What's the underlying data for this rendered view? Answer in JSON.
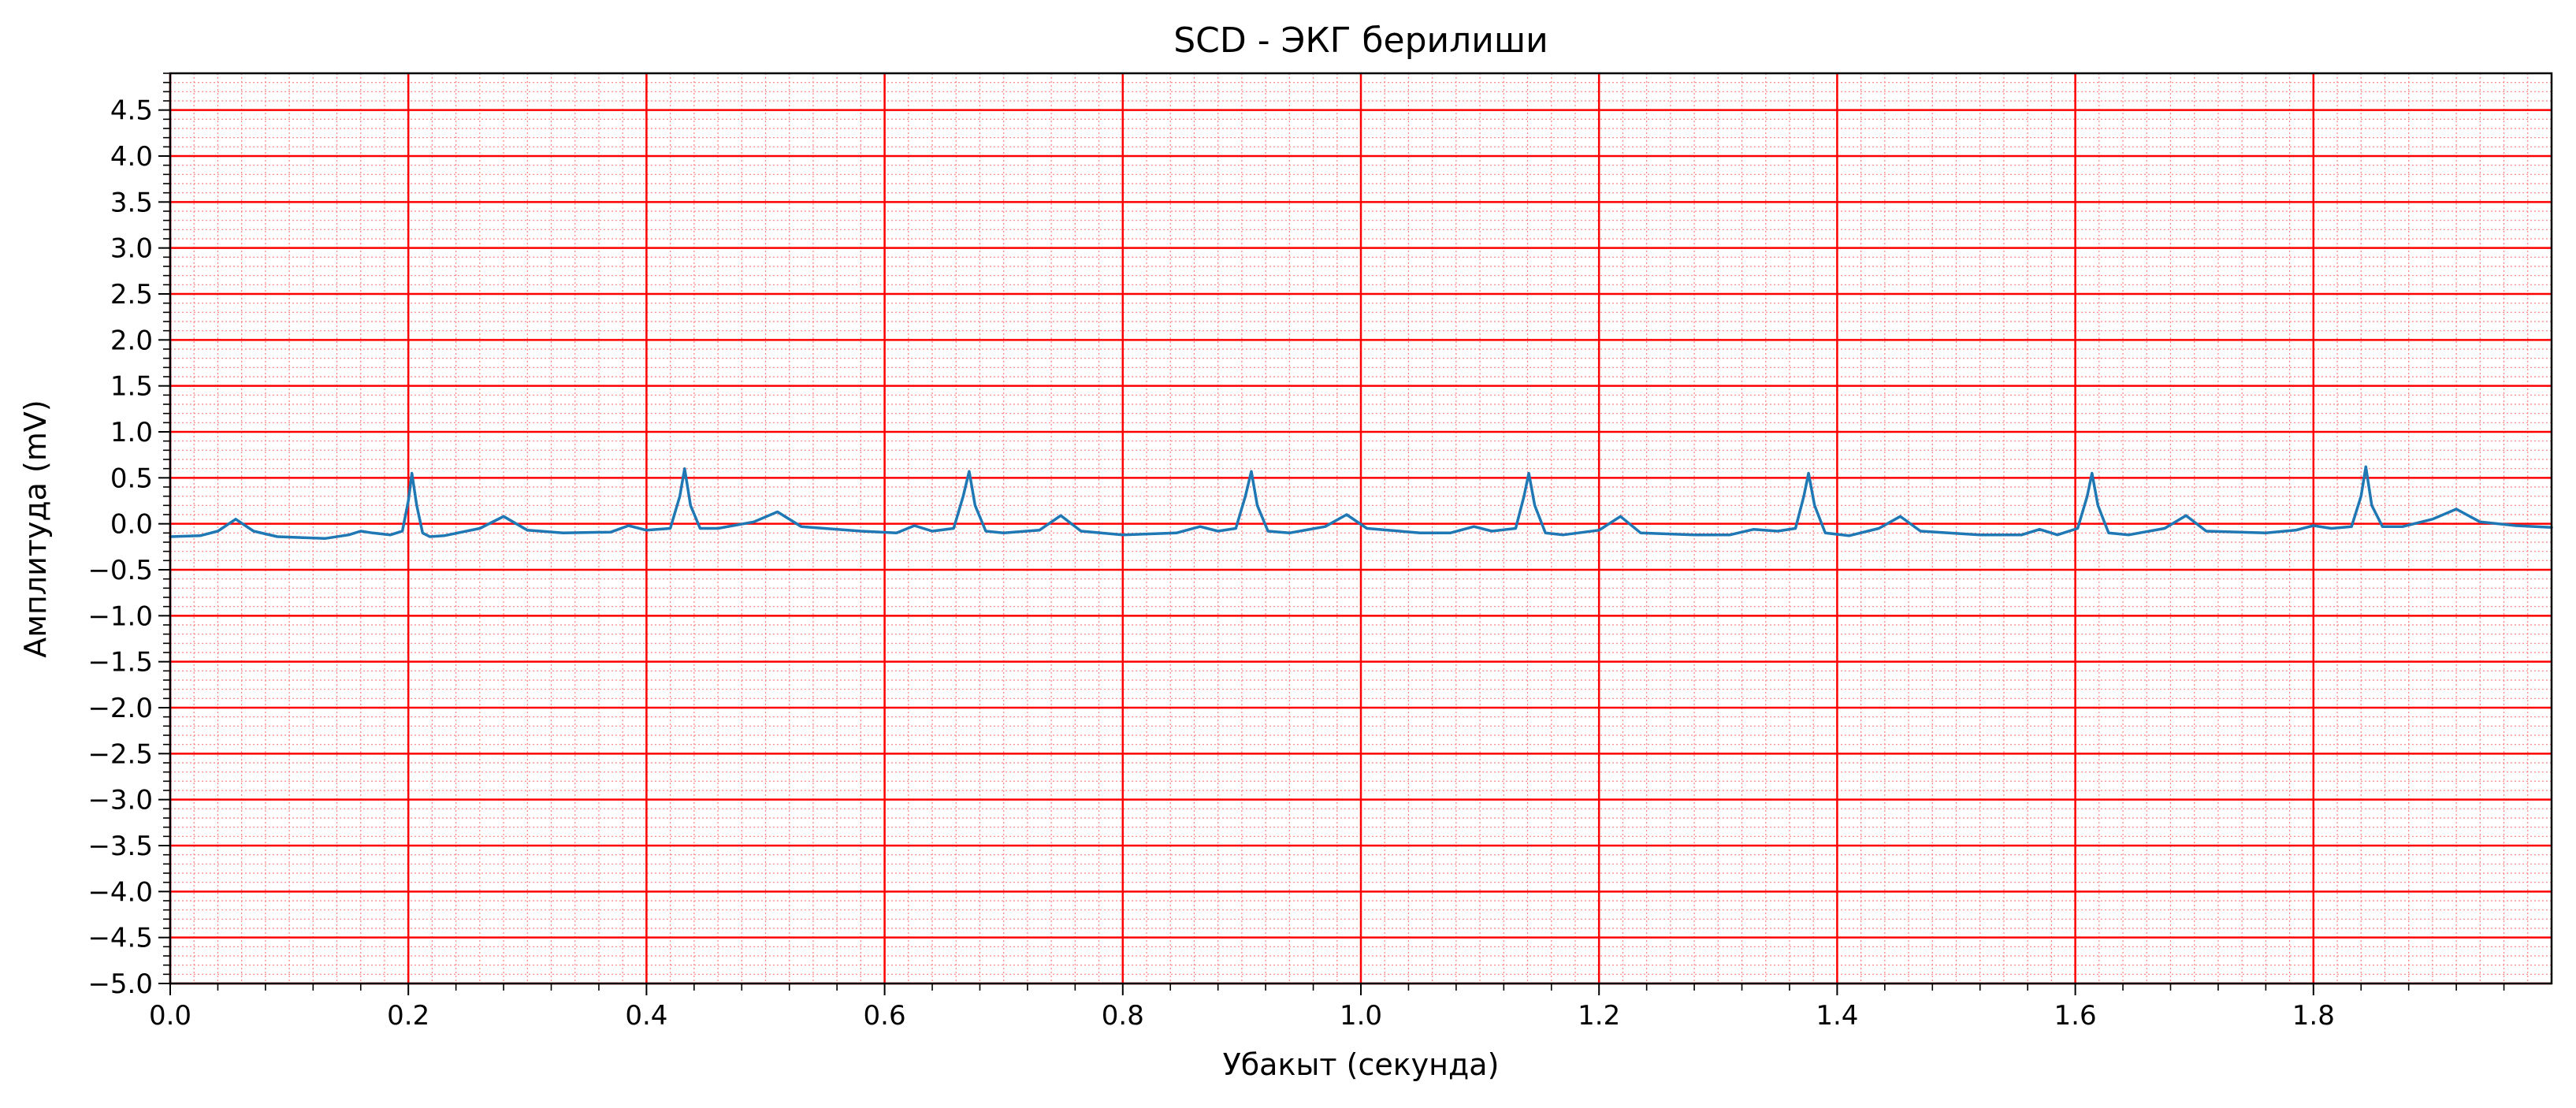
{
  "chart_data": {
    "type": "line",
    "title": "SCD - ЭКГ берилиши",
    "xlabel": "Убакыт (секунда)",
    "ylabel": "Амплитуда (mV)",
    "xlim": [
      0.0,
      2.0
    ],
    "ylim": [
      -5.0,
      4.9
    ],
    "xticks": [
      0.0,
      0.2,
      0.4,
      0.6,
      0.8,
      1.0,
      1.2,
      1.4,
      1.6,
      1.8
    ],
    "xtick_labels": [
      "0.0",
      "0.2",
      "0.4",
      "0.6",
      "0.8",
      "1.0",
      "1.2",
      "1.4",
      "1.6",
      "1.8"
    ],
    "yticks": [
      -5.0,
      -4.5,
      -4.0,
      -3.5,
      -3.0,
      -2.5,
      -2.0,
      -1.5,
      -1.0,
      -0.5,
      0.0,
      0.5,
      1.0,
      1.5,
      2.0,
      2.5,
      3.0,
      3.5,
      4.0,
      4.5
    ],
    "ytick_labels": [
      "−5.0",
      "−4.5",
      "−4.0",
      "−3.5",
      "−3.0",
      "−2.5",
      "−2.0",
      "−1.5",
      "−1.0",
      "−0.5",
      "0.0",
      "0.5",
      "1.0",
      "1.5",
      "2.0",
      "2.5",
      "3.0",
      "3.5",
      "4.0",
      "4.5"
    ],
    "grid": true,
    "grid_major_color": "#ff0000",
    "grid_minor_color": "#ff8080",
    "line_color": "#1f77b4",
    "series": [
      {
        "x": [
          0.0,
          0.025,
          0.04,
          0.055,
          0.07,
          0.09,
          0.13,
          0.15,
          0.16,
          0.17,
          0.185,
          0.195,
          0.2,
          0.203,
          0.207,
          0.212,
          0.218,
          0.23,
          0.26,
          0.28,
          0.3,
          0.33,
          0.37,
          0.385,
          0.4,
          0.42,
          0.428,
          0.432,
          0.437,
          0.445,
          0.46,
          0.49,
          0.51,
          0.53,
          0.58,
          0.61,
          0.625,
          0.64,
          0.658,
          0.666,
          0.671,
          0.676,
          0.685,
          0.7,
          0.73,
          0.748,
          0.765,
          0.8,
          0.845,
          0.865,
          0.88,
          0.895,
          0.903,
          0.908,
          0.913,
          0.922,
          0.94,
          0.97,
          0.988,
          1.005,
          1.05,
          1.075,
          1.095,
          1.11,
          1.13,
          1.137,
          1.141,
          1.146,
          1.155,
          1.17,
          1.2,
          1.218,
          1.235,
          1.28,
          1.31,
          1.33,
          1.35,
          1.365,
          1.372,
          1.376,
          1.381,
          1.39,
          1.41,
          1.435,
          1.453,
          1.47,
          1.52,
          1.555,
          1.57,
          1.585,
          1.602,
          1.61,
          1.614,
          1.619,
          1.628,
          1.645,
          1.675,
          1.693,
          1.71,
          1.76,
          1.785,
          1.8,
          1.815,
          1.832,
          1.84,
          1.844,
          1.849,
          1.858,
          1.875,
          1.9,
          1.92,
          1.94,
          1.97,
          2.0
        ],
        "values": [
          -0.14,
          -0.13,
          -0.08,
          0.05,
          -0.08,
          -0.14,
          -0.16,
          -0.12,
          -0.08,
          -0.1,
          -0.12,
          -0.08,
          0.25,
          0.55,
          0.2,
          -0.1,
          -0.14,
          -0.13,
          -0.05,
          0.08,
          -0.07,
          -0.1,
          -0.09,
          -0.02,
          -0.07,
          -0.05,
          0.3,
          0.6,
          0.2,
          -0.05,
          -0.05,
          0.02,
          0.13,
          -0.03,
          -0.08,
          -0.1,
          -0.02,
          -0.08,
          -0.05,
          0.3,
          0.57,
          0.2,
          -0.08,
          -0.1,
          -0.07,
          0.09,
          -0.08,
          -0.12,
          -0.1,
          -0.03,
          -0.08,
          -0.05,
          0.3,
          0.57,
          0.2,
          -0.08,
          -0.1,
          -0.03,
          0.1,
          -0.05,
          -0.1,
          -0.1,
          -0.03,
          -0.08,
          -0.05,
          0.3,
          0.55,
          0.2,
          -0.1,
          -0.12,
          -0.07,
          0.08,
          -0.1,
          -0.12,
          -0.12,
          -0.06,
          -0.08,
          -0.05,
          0.3,
          0.55,
          0.2,
          -0.1,
          -0.13,
          -0.05,
          0.08,
          -0.08,
          -0.12,
          -0.12,
          -0.06,
          -0.12,
          -0.05,
          0.3,
          0.55,
          0.2,
          -0.1,
          -0.12,
          -0.05,
          0.09,
          -0.08,
          -0.1,
          -0.07,
          -0.02,
          -0.05,
          -0.03,
          0.3,
          0.62,
          0.2,
          -0.03,
          -0.03,
          0.05,
          0.16,
          0.02,
          -0.02,
          -0.04
        ]
      }
    ]
  }
}
